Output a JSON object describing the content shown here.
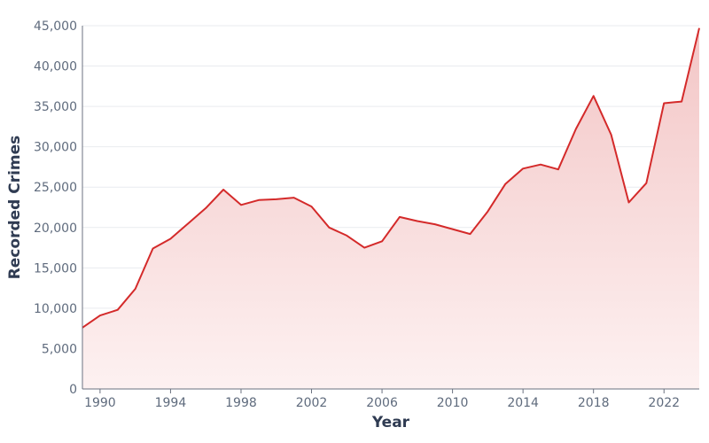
{
  "chart_data": {
    "type": "area",
    "xlabel": "Year",
    "ylabel": "Recorded Crimes",
    "xlim": [
      1989,
      2024
    ],
    "ylim": [
      0,
      45000
    ],
    "grid": true,
    "x_ticks": [
      1990,
      1994,
      1998,
      2002,
      2006,
      2010,
      2014,
      2018,
      2022
    ],
    "y_ticks": [
      0,
      5000,
      10000,
      15000,
      20000,
      25000,
      30000,
      35000,
      40000,
      45000
    ],
    "y_tick_labels": [
      "0",
      "5,000",
      "10,000",
      "15,000",
      "20,000",
      "25,000",
      "30,000",
      "35,000",
      "40,000",
      "45,000"
    ],
    "colors": {
      "line": "#d42a2a",
      "fill_top": "#f3c6c6",
      "fill_bottom": "#fdf1f1"
    },
    "series": [
      {
        "x": [
          1989,
          1990,
          1991,
          1992,
          1993,
          1994,
          1995,
          1996,
          1997,
          1998,
          1999,
          2000,
          2001,
          2002,
          2003,
          2004,
          2005,
          2006,
          2007,
          2008,
          2009,
          2010,
          2011,
          2012,
          2013,
          2014,
          2015,
          2016,
          2017,
          2018,
          2019,
          2020,
          2021,
          2022,
          2023,
          2024
        ],
        "values": [
          7600,
          9100,
          9800,
          12400,
          17400,
          18600,
          20500,
          22400,
          24700,
          22800,
          23400,
          23500,
          23700,
          22600,
          20000,
          19000,
          17500,
          18300,
          21300,
          20800,
          20400,
          19800,
          19200,
          22000,
          25400,
          27300,
          27800,
          27200,
          32200,
          36300,
          31500,
          23100,
          25500,
          35400,
          35600,
          44700
        ]
      }
    ]
  }
}
